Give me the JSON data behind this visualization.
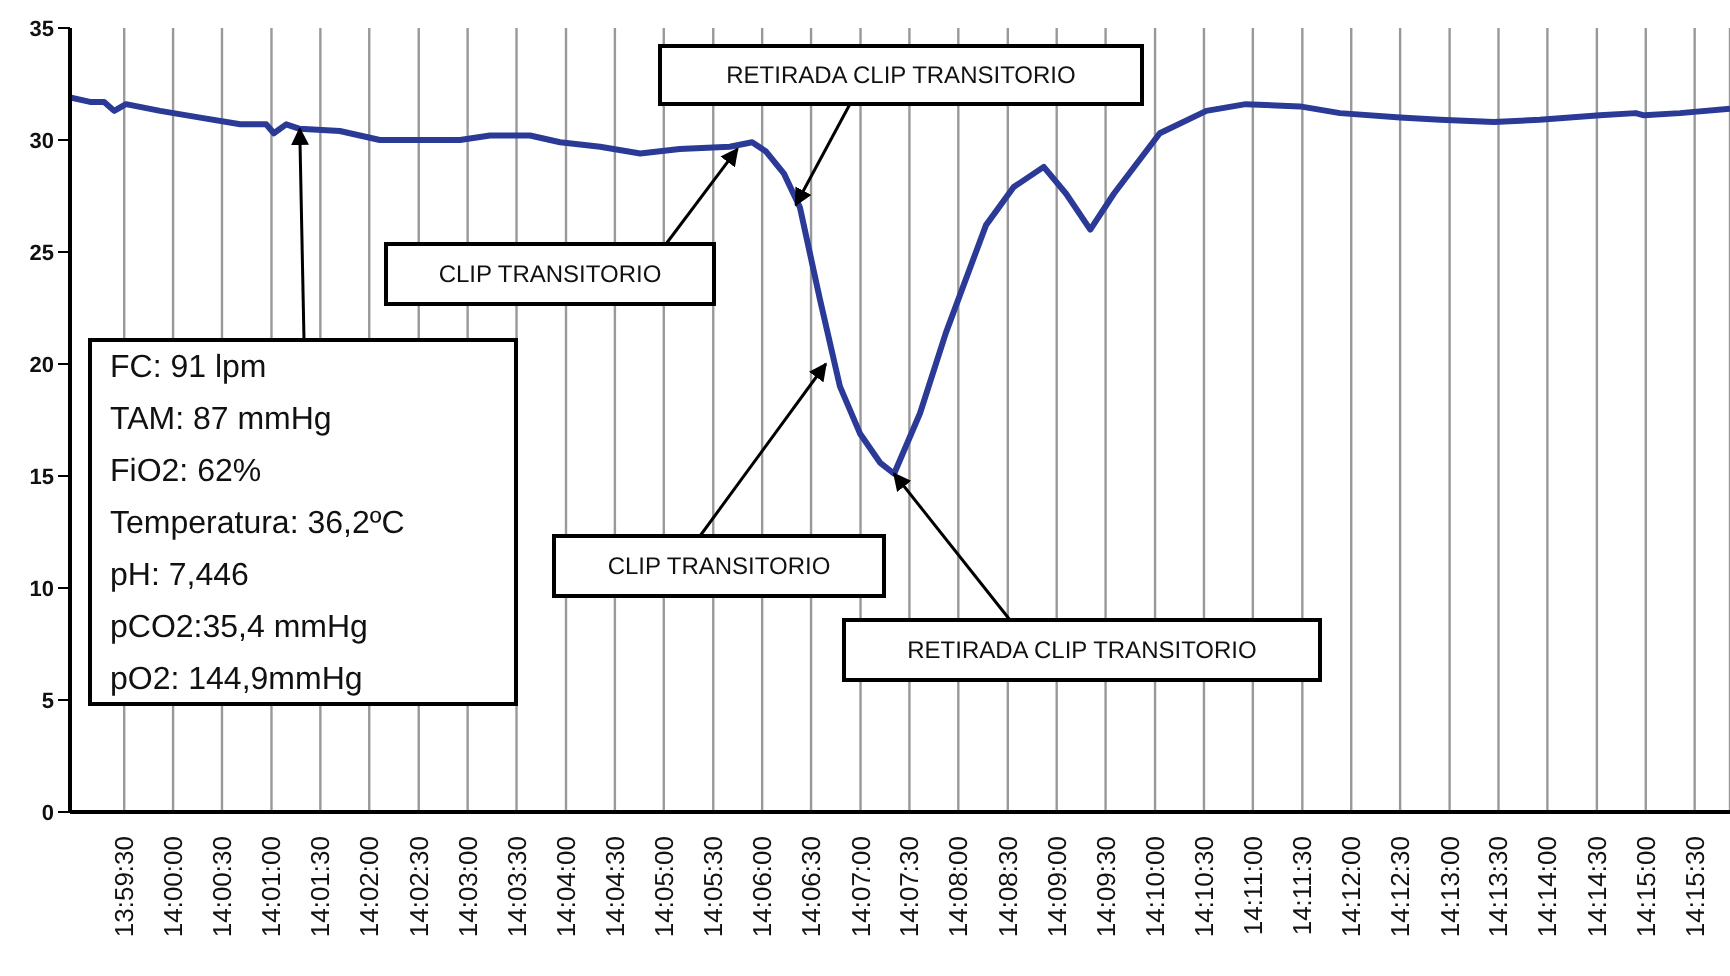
{
  "chart_data": {
    "type": "line",
    "grid": "x",
    "marker": "none",
    "line_style": "solid",
    "xlim": [
      13.9825,
      14.2643
    ],
    "ylim": [
      0,
      35
    ],
    "yticks": [
      0,
      5,
      10,
      15,
      20,
      25,
      30,
      35
    ],
    "xticks": [
      {
        "value": 13.9917,
        "label": "13:59:30"
      },
      {
        "value": 14.0,
        "label": "14:00:00"
      },
      {
        "value": 14.0083,
        "label": "14:00:30"
      },
      {
        "value": 14.0167,
        "label": "14:01:00"
      },
      {
        "value": 14.025,
        "label": "14:01:30"
      },
      {
        "value": 14.0333,
        "label": "14:02:00"
      },
      {
        "value": 14.0417,
        "label": "14:02:30"
      },
      {
        "value": 14.05,
        "label": "14:03:00"
      },
      {
        "value": 14.0583,
        "label": "14:03:30"
      },
      {
        "value": 14.0667,
        "label": "14:04:00"
      },
      {
        "value": 14.075,
        "label": "14:04:30"
      },
      {
        "value": 14.0833,
        "label": "14:05:00"
      },
      {
        "value": 14.0917,
        "label": "14:05:30"
      },
      {
        "value": 14.1,
        "label": "14:06:00"
      },
      {
        "value": 14.1083,
        "label": "14:06:30"
      },
      {
        "value": 14.1167,
        "label": "14:07:00"
      },
      {
        "value": 14.125,
        "label": "14:07:30"
      },
      {
        "value": 14.1333,
        "label": "14:08:00"
      },
      {
        "value": 14.1417,
        "label": "14:08:30"
      },
      {
        "value": 14.15,
        "label": "14:09:00"
      },
      {
        "value": 14.1583,
        "label": "14:09:30"
      },
      {
        "value": 14.1667,
        "label": "14:10:00"
      },
      {
        "value": 14.175,
        "label": "14:10:30"
      },
      {
        "value": 14.1833,
        "label": "14:11:00"
      },
      {
        "value": 14.1917,
        "label": "14:11:30"
      },
      {
        "value": 14.2,
        "label": "14:12:00"
      },
      {
        "value": 14.2083,
        "label": "14:12:30"
      },
      {
        "value": 14.2167,
        "label": "14:13:00"
      },
      {
        "value": 14.225,
        "label": "14:13:30"
      },
      {
        "value": 14.2333,
        "label": "14:14:00"
      },
      {
        "value": 14.2417,
        "label": "14:14:30"
      },
      {
        "value": 14.25,
        "label": "14:15:00"
      },
      {
        "value": 14.2583,
        "label": "14:15:30"
      }
    ],
    "series": [
      {
        "color": "#2b3a97",
        "x": [
          13.9825,
          13.9859,
          13.9883,
          13.99,
          13.992,
          13.9978,
          14.0046,
          14.0114,
          14.0158,
          14.0171,
          14.0192,
          14.0215,
          14.0283,
          14.0351,
          14.0487,
          14.0538,
          14.0606,
          14.0657,
          14.0725,
          14.0793,
          14.086,
          14.0945,
          14.0983,
          14.1006,
          14.1037,
          14.1064,
          14.1098,
          14.1132,
          14.1166,
          14.12,
          14.1224,
          14.1268,
          14.1312,
          14.138,
          14.1427,
          14.1478,
          14.1516,
          14.1557,
          14.1597,
          14.1675,
          14.1754,
          14.1821,
          14.1913,
          14.1981,
          14.2083,
          14.2151,
          14.2242,
          14.232,
          14.2422,
          14.2483,
          14.2497,
          14.2558,
          14.2643
        ],
        "values": [
          31.9,
          31.7,
          31.7,
          31.3,
          31.6,
          31.3,
          31.0,
          30.7,
          30.7,
          30.3,
          30.7,
          30.5,
          30.4,
          30.0,
          30.0,
          30.2,
          30.2,
          29.9,
          29.7,
          29.4,
          29.6,
          29.7,
          29.9,
          29.5,
          28.5,
          27.0,
          22.9,
          19.0,
          16.9,
          15.6,
          15.1,
          17.8,
          21.4,
          26.2,
          27.9,
          28.8,
          27.6,
          26.0,
          27.6,
          30.3,
          31.3,
          31.6,
          31.5,
          31.2,
          31.0,
          30.9,
          30.8,
          30.9,
          31.1,
          31.2,
          31.1,
          31.2,
          31.4
        ]
      }
    ],
    "annotations": [
      {
        "text": "FC: 91 lpm\nTAM: 87 mmHg\nFiO2: 62%\nTemperatura: 36,2ºC\npH: 7,446\npCO2:35,4 mmHg\npO2: 144,9mmHg",
        "x": 14.0215,
        "y": 30.5
      },
      {
        "text": "CLIP TRANSITORIO",
        "x": 14.0958,
        "y": 29.6
      },
      {
        "text": "RETIRADA CLIP TRANSITORIO",
        "x": 14.1057,
        "y": 27.1
      },
      {
        "text": "CLIP TRANSITORIO",
        "x": 14.1108,
        "y": 20.0
      },
      {
        "text": "RETIRADA CLIP TRANSITORIO",
        "x": 14.1224,
        "y": 15.1
      }
    ]
  }
}
